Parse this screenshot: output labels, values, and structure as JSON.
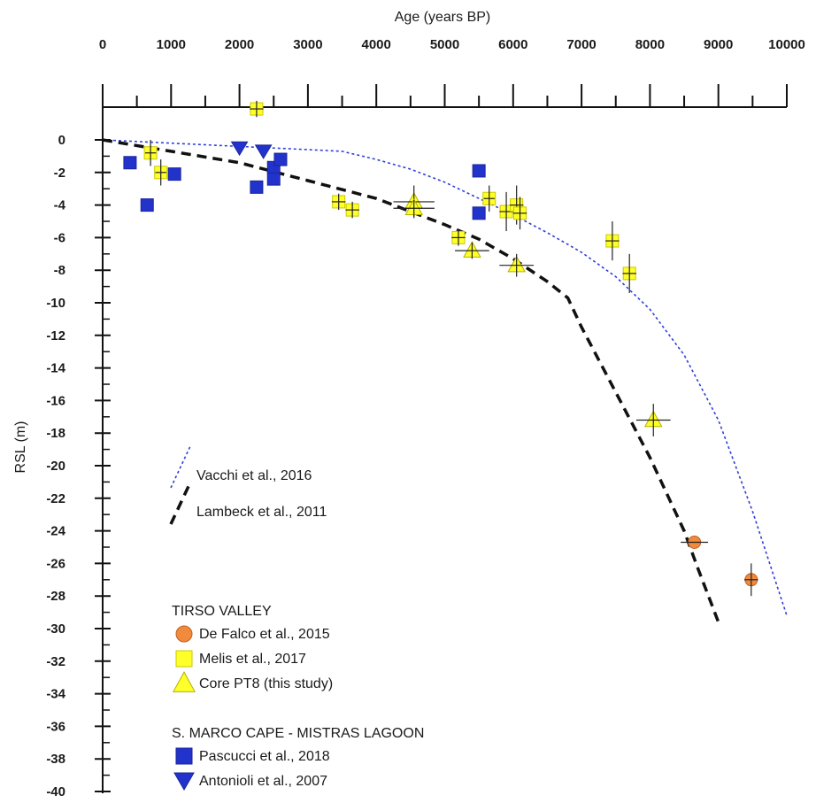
{
  "chart_data": {
    "type": "scatter",
    "xlabel": "Age (years BP)",
    "ylabel": "RSL (m)",
    "xlim": [
      0,
      10000
    ],
    "ylim": [
      -40,
      2
    ],
    "x_axis_position": "top",
    "x_ticks": [
      0,
      1000,
      2000,
      3000,
      4000,
      5000,
      6000,
      7000,
      8000,
      9000,
      10000
    ],
    "y_ticks": [
      0,
      -2,
      -4,
      -6,
      -8,
      -10,
      -12,
      -14,
      -16,
      -18,
      -20,
      -22,
      -24,
      -26,
      -28,
      -30,
      -32,
      -34,
      -36,
      -38,
      -40
    ],
    "grid": false,
    "curves": [
      {
        "name": "Vacchi et al., 2016",
        "style": "dotted",
        "color": "#2f3fd6",
        "points": [
          [
            0,
            0
          ],
          [
            1000,
            -0.2
          ],
          [
            2000,
            -0.4
          ],
          [
            3000,
            -0.6
          ],
          [
            3500,
            -0.7
          ],
          [
            4000,
            -1.2
          ],
          [
            4500,
            -1.8
          ],
          [
            5000,
            -2.6
          ],
          [
            5500,
            -3.6
          ],
          [
            6000,
            -4.6
          ],
          [
            6500,
            -5.7
          ],
          [
            7000,
            -6.9
          ],
          [
            7500,
            -8.4
          ],
          [
            8000,
            -10.4
          ],
          [
            8500,
            -13.2
          ],
          [
            9000,
            -17.2
          ],
          [
            9500,
            -22.8
          ],
          [
            10000,
            -29.2
          ]
        ]
      },
      {
        "name": "Lambeck et al., 2011",
        "style": "dashed",
        "color": "#111111",
        "points": [
          [
            0,
            0
          ],
          [
            1000,
            -0.7
          ],
          [
            2000,
            -1.4
          ],
          [
            3000,
            -2.5
          ],
          [
            4000,
            -3.6
          ],
          [
            5000,
            -5.2
          ],
          [
            5500,
            -6.1
          ],
          [
            6000,
            -7.3
          ],
          [
            6500,
            -8.7
          ],
          [
            6800,
            -9.7
          ],
          [
            7000,
            -11.5
          ],
          [
            7500,
            -15.5
          ],
          [
            8000,
            -19.5
          ],
          [
            8500,
            -24.0
          ],
          [
            8700,
            -26.3
          ],
          [
            8900,
            -28.5
          ],
          [
            9000,
            -29.6
          ]
        ]
      }
    ],
    "series": [
      {
        "name": "De Falco et al., 2015",
        "group": "TIRSO VALLEY",
        "marker": "circle",
        "color": "#f08a3c",
        "points": [
          {
            "x": 8650,
            "y": -24.7,
            "xerr": 200,
            "yerr": 0
          },
          {
            "x": 9480,
            "y": -27.0,
            "xerr": 100,
            "yerr": 1.0
          }
        ]
      },
      {
        "name": "Melis et al., 2017",
        "group": "TIRSO VALLEY",
        "marker": "square",
        "color": "#ffff2a",
        "points": [
          {
            "x": 2250,
            "y": 1.9,
            "xerr": 100,
            "yerr": 0.5
          },
          {
            "x": 700,
            "y": -0.8,
            "xerr": 80,
            "yerr": 0.8
          },
          {
            "x": 850,
            "y": -2.0,
            "xerr": 80,
            "yerr": 0.8
          },
          {
            "x": 3450,
            "y": -3.8,
            "xerr": 100,
            "yerr": 0.5
          },
          {
            "x": 3650,
            "y": -4.3,
            "xerr": 100,
            "yerr": 0.5
          },
          {
            "x": 5200,
            "y": -6.0,
            "xerr": 100,
            "yerr": 0.5
          },
          {
            "x": 5650,
            "y": -3.6,
            "xerr": 80,
            "yerr": 0.8
          },
          {
            "x": 5900,
            "y": -4.4,
            "xerr": 100,
            "yerr": 1.2
          },
          {
            "x": 6050,
            "y": -4.0,
            "xerr": 100,
            "yerr": 1.2
          },
          {
            "x": 6100,
            "y": -4.5,
            "xerr": 100,
            "yerr": 1.0
          },
          {
            "x": 7450,
            "y": -6.2,
            "xerr": 100,
            "yerr": 1.2
          },
          {
            "x": 7700,
            "y": -8.2,
            "xerr": 100,
            "yerr": 1.2
          }
        ]
      },
      {
        "name": "Core PT8 (this study)",
        "group": "TIRSO VALLEY",
        "marker": "triangle-up",
        "color": "#ffff2a",
        "points": [
          {
            "x": 4550,
            "y": -3.8,
            "xerr": 300,
            "yerr": 1.0
          },
          {
            "x": 4550,
            "y": -4.2,
            "xerr": 300,
            "yerr": 0.5
          },
          {
            "x": 5400,
            "y": -6.8,
            "xerr": 250,
            "yerr": 0.5
          },
          {
            "x": 6050,
            "y": -7.7,
            "xerr": 250,
            "yerr": 0.7
          },
          {
            "x": 8050,
            "y": -17.2,
            "xerr": 250,
            "yerr": 1.0
          }
        ]
      },
      {
        "name": "Pascucci et al., 2018",
        "group": "S. MARCO CAPE - MISTRAS LAGOON",
        "marker": "square",
        "color": "#2233cc",
        "points": [
          {
            "x": 400,
            "y": -1.4,
            "xerr": 0,
            "yerr": 0
          },
          {
            "x": 650,
            "y": -4.0,
            "xerr": 0,
            "yerr": 0
          },
          {
            "x": 1050,
            "y": -2.1,
            "xerr": 0,
            "yerr": 0
          },
          {
            "x": 2250,
            "y": -2.9,
            "xerr": 0,
            "yerr": 0
          },
          {
            "x": 2500,
            "y": -1.7,
            "xerr": 0,
            "yerr": 0
          },
          {
            "x": 2500,
            "y": -2.4,
            "xerr": 0,
            "yerr": 0
          },
          {
            "x": 2600,
            "y": -1.2,
            "xerr": 0,
            "yerr": 0
          },
          {
            "x": 5500,
            "y": -1.9,
            "xerr": 0,
            "yerr": 0
          },
          {
            "x": 5500,
            "y": -4.5,
            "xerr": 0,
            "yerr": 0
          }
        ]
      },
      {
        "name": "Antonioli et al., 2007",
        "group": "S. MARCO CAPE - MISTRAS LAGOON",
        "marker": "triangle-down",
        "color": "#2233cc",
        "points": [
          {
            "x": 2000,
            "y": -0.5,
            "xerr": 0,
            "yerr": 0
          },
          {
            "x": 2350,
            "y": -0.7,
            "xerr": 0,
            "yerr": 0
          }
        ]
      }
    ],
    "legend": {
      "curves": [
        "Vacchi et al., 2016",
        "Lambeck et al., 2011"
      ],
      "groups": [
        {
          "title": "TIRSO VALLEY",
          "entries": [
            "De Falco et al., 2015",
            "Melis et al., 2017",
            "Core PT8 (this study)"
          ]
        },
        {
          "title": "S. MARCO CAPE - MISTRAS LAGOON",
          "entries": [
            "Pascucci et al., 2018",
            "Antonioli et al., 2007"
          ]
        }
      ]
    }
  }
}
